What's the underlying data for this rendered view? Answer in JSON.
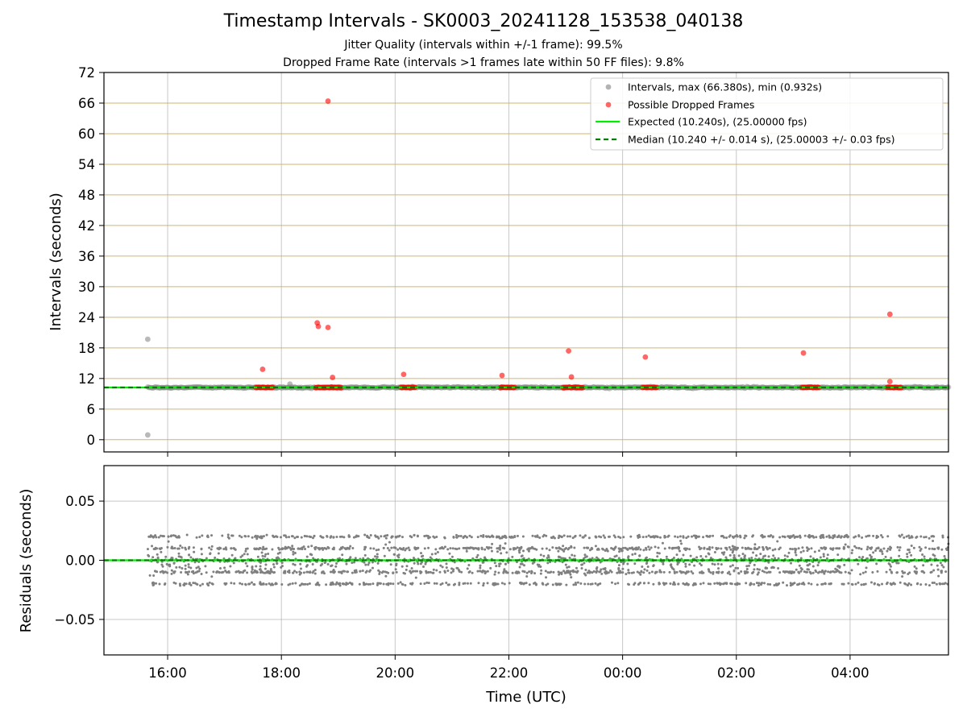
{
  "title": "Timestamp Intervals - SK0003_20241128_153538_040138",
  "subtitle_lines": [
    "Jitter Quality (intervals within +/-1 frame): 99.5%",
    "Dropped Frame Rate (intervals >1 frames late within 50 FF files): 9.8%"
  ],
  "chart_data": [
    {
      "type": "scatter",
      "ylabel": "Intervals (seconds)",
      "ylim": [
        -2.4,
        72
      ],
      "yticks": [
        "0",
        "6",
        "12",
        "18",
        "24",
        "30",
        "36",
        "42",
        "48",
        "54",
        "60",
        "66",
        "72"
      ],
      "xticks": [
        "16:00",
        "18:00",
        "20:00",
        "22:00",
        "00:00",
        "02:00",
        "04:00"
      ],
      "xlim_hours": [
        14.88,
        29.73
      ],
      "grid": "y-major and x-major",
      "legend_position": "upper-right",
      "legend": [
        "Intervals, max (66.380s), min (0.932s)",
        "Possible Dropped Frames",
        "Expected (10.240s), (25.00000 fps)",
        "Median (10.240 +/- 0.014 s), (25.00003 +/- 0.03 fps)"
      ],
      "series": [
        {
          "name": "Intervals, max (66.380s), min (0.932s)",
          "color": "#808080",
          "x_range_hours": [
            15.65,
            29.73
          ],
          "baseline": 10.24,
          "outliers": [
            [
              15.65,
              19.7
            ],
            [
              15.65,
              0.93
            ],
            [
              18.15,
              10.9
            ]
          ]
        },
        {
          "name": "Possible Dropped Frames",
          "color": "#ff0000",
          "points": [
            [
              17.67,
              13.8
            ],
            [
              18.63,
              22.9
            ],
            [
              18.65,
              22.2
            ],
            [
              18.82,
              66.38
            ],
            [
              18.82,
              22.0
            ],
            [
              18.9,
              12.2
            ],
            [
              20.15,
              12.8
            ],
            [
              21.88,
              12.6
            ],
            [
              23.05,
              17.4
            ],
            [
              23.1,
              12.3
            ],
            [
              24.4,
              16.2
            ],
            [
              27.18,
              17.0
            ],
            [
              28.7,
              24.6
            ],
            [
              28.7,
              11.4
            ]
          ],
          "clusters_at_10_24": [
            [
              17.55,
              17.85
            ],
            [
              18.6,
              19.05
            ],
            [
              20.1,
              20.35
            ],
            [
              21.85,
              22.1
            ],
            [
              22.95,
              23.3
            ],
            [
              24.35,
              24.6
            ],
            [
              27.15,
              27.45
            ],
            [
              28.65,
              28.9
            ]
          ]
        },
        {
          "name": "Expected (10.240s), (25.00000 fps)",
          "color": "#00ee00",
          "y": 10.24,
          "style": "solid"
        },
        {
          "name": "Median (10.240 +/- 0.014 s), (25.00003 +/- 0.03 fps)",
          "color": "#007f00",
          "y": 10.24,
          "style": "dashed"
        }
      ]
    },
    {
      "type": "scatter",
      "xlabel": "Time (UTC)",
      "ylabel": "Residuals (seconds)",
      "ylim": [
        -0.08,
        0.08
      ],
      "yticks": [
        "−0.05",
        "0.00",
        "0.05"
      ],
      "xticks": [
        "16:00",
        "18:00",
        "20:00",
        "22:00",
        "00:00",
        "02:00",
        "04:00"
      ],
      "xlim_hours": [
        14.88,
        29.73
      ],
      "grid": "both",
      "series": [
        {
          "name": "residuals",
          "color": "#808080",
          "x_range_hours": [
            15.65,
            29.73
          ],
          "bands": [
            0.02,
            0.01,
            0.0,
            -0.01,
            -0.02
          ],
          "spread_extremes": [
            0.038,
            -0.044
          ]
        },
        {
          "name": "expected",
          "color": "#00ee00",
          "y": 0.0,
          "style": "solid"
        },
        {
          "name": "median",
          "color": "#007f00",
          "y": 0.0,
          "style": "dashed"
        }
      ]
    }
  ]
}
